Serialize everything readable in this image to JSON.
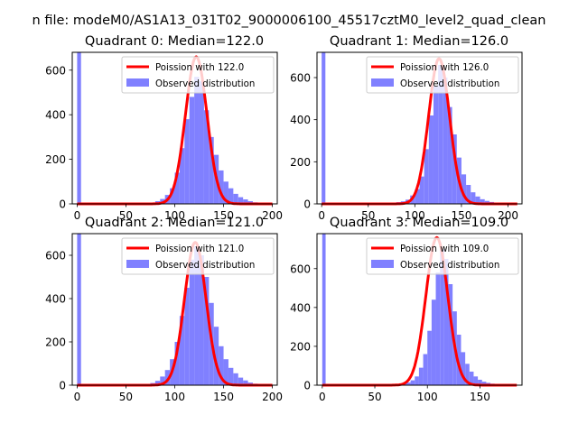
{
  "suptitle": "n file: modeM0/AS1A13_031T02_9000006100_45517cztM0_level2_quad_clean",
  "colors": {
    "hist": "#8080ff",
    "curve": "#ff0000"
  },
  "chart_data": [
    {
      "type": "bar",
      "title": "Quadrant 0: Median=122.0",
      "xlim": [
        -5,
        205
      ],
      "ylim": [
        0,
        680
      ],
      "xticks": [
        0,
        50,
        100,
        150,
        200
      ],
      "yticks": [
        0,
        200,
        400,
        600
      ],
      "legend": {
        "placement": "top-right",
        "entries": [
          "Poission with 122.0",
          "Observed distribution"
        ]
      },
      "spike": {
        "x": 0,
        "value": 680
      },
      "bin_width": 5,
      "bins": [
        [
          60,
          1
        ],
        [
          65,
          2
        ],
        [
          70,
          3
        ],
        [
          75,
          6
        ],
        [
          80,
          12
        ],
        [
          85,
          22
        ],
        [
          90,
          40
        ],
        [
          95,
          70
        ],
        [
          100,
          140
        ],
        [
          105,
          250
        ],
        [
          110,
          380
        ],
        [
          115,
          480
        ],
        [
          120,
          570
        ],
        [
          125,
          550
        ],
        [
          130,
          420
        ],
        [
          135,
          300
        ],
        [
          140,
          220
        ],
        [
          145,
          150
        ],
        [
          150,
          100
        ],
        [
          155,
          70
        ],
        [
          160,
          45
        ],
        [
          165,
          30
        ],
        [
          170,
          20
        ],
        [
          175,
          12
        ],
        [
          180,
          7
        ],
        [
          185,
          4
        ],
        [
          190,
          2
        ],
        [
          195,
          1
        ]
      ],
      "curve": {
        "mean": 122.0,
        "peak": 660,
        "sigma": 11.05
      }
    },
    {
      "type": "bar",
      "title": "Quadrant 1: Median=126.0",
      "xlim": [
        -5,
        215
      ],
      "ylim": [
        0,
        720
      ],
      "xticks": [
        0,
        50,
        100,
        150,
        200
      ],
      "yticks": [
        0,
        200,
        400,
        600
      ],
      "legend": {
        "placement": "top-right",
        "entries": [
          "Poission with 126.0",
          "Observed distribution"
        ]
      },
      "spike": {
        "x": 0,
        "value": 720
      },
      "bin_width": 5,
      "bins": [
        [
          60,
          1
        ],
        [
          65,
          2
        ],
        [
          70,
          3
        ],
        [
          75,
          5
        ],
        [
          80,
          8
        ],
        [
          85,
          12
        ],
        [
          90,
          20
        ],
        [
          95,
          40
        ],
        [
          100,
          70
        ],
        [
          105,
          130
        ],
        [
          110,
          260
        ],
        [
          115,
          420
        ],
        [
          120,
          560
        ],
        [
          125,
          660
        ],
        [
          130,
          600
        ],
        [
          135,
          460
        ],
        [
          140,
          330
        ],
        [
          145,
          220
        ],
        [
          150,
          140
        ],
        [
          155,
          90
        ],
        [
          160,
          55
        ],
        [
          165,
          35
        ],
        [
          170,
          22
        ],
        [
          175,
          14
        ],
        [
          180,
          9
        ],
        [
          185,
          5
        ],
        [
          190,
          3
        ],
        [
          195,
          2
        ],
        [
          200,
          1
        ]
      ],
      "curve": {
        "mean": 126.0,
        "peak": 690,
        "sigma": 11.22
      }
    },
    {
      "type": "bar",
      "title": "Quadrant 2: Median=121.0",
      "xlim": [
        -5,
        205
      ],
      "ylim": [
        0,
        700
      ],
      "xticks": [
        0,
        50,
        100,
        150,
        200
      ],
      "yticks": [
        0,
        200,
        400,
        600
      ],
      "legend": {
        "placement": "top-right",
        "entries": [
          "Poission with 121.0",
          "Observed distribution"
        ]
      },
      "spike": {
        "x": 0,
        "value": 700
      },
      "bin_width": 5,
      "bins": [
        [
          55,
          1
        ],
        [
          60,
          2
        ],
        [
          65,
          3
        ],
        [
          70,
          5
        ],
        [
          75,
          10
        ],
        [
          80,
          20
        ],
        [
          85,
          40
        ],
        [
          90,
          70
        ],
        [
          95,
          120
        ],
        [
          100,
          200
        ],
        [
          105,
          320
        ],
        [
          110,
          450
        ],
        [
          115,
          580
        ],
        [
          120,
          640
        ],
        [
          125,
          600
        ],
        [
          130,
          500
        ],
        [
          135,
          380
        ],
        [
          140,
          270
        ],
        [
          145,
          180
        ],
        [
          150,
          120
        ],
        [
          155,
          80
        ],
        [
          160,
          55
        ],
        [
          165,
          35
        ],
        [
          170,
          22
        ],
        [
          175,
          12
        ],
        [
          180,
          7
        ],
        [
          185,
          4
        ],
        [
          190,
          2
        ],
        [
          195,
          1
        ]
      ],
      "curve": {
        "mean": 121.0,
        "peak": 660,
        "sigma": 11.0
      }
    },
    {
      "type": "bar",
      "title": "Quadrant 3: Median=109.0",
      "xlim": [
        -5,
        190
      ],
      "ylim": [
        0,
        780
      ],
      "xticks": [
        0,
        50,
        100,
        150
      ],
      "yticks": [
        0,
        200,
        400,
        600
      ],
      "legend": {
        "placement": "top-right",
        "entries": [
          "Poission with 109.0",
          "Observed distribution"
        ]
      },
      "spike": {
        "x": 0,
        "value": 780
      },
      "bin_width": 4,
      "bins": [
        [
          60,
          1
        ],
        [
          64,
          2
        ],
        [
          68,
          3
        ],
        [
          72,
          5
        ],
        [
          76,
          8
        ],
        [
          80,
          14
        ],
        [
          84,
          25
        ],
        [
          88,
          45
        ],
        [
          92,
          90
        ],
        [
          96,
          160
        ],
        [
          100,
          280
        ],
        [
          104,
          440
        ],
        [
          108,
          580
        ],
        [
          112,
          700
        ],
        [
          116,
          650
        ],
        [
          120,
          520
        ],
        [
          124,
          380
        ],
        [
          128,
          260
        ],
        [
          132,
          170
        ],
        [
          136,
          110
        ],
        [
          140,
          70
        ],
        [
          144,
          45
        ],
        [
          148,
          28
        ],
        [
          152,
          18
        ],
        [
          156,
          12
        ],
        [
          160,
          8
        ],
        [
          164,
          5
        ],
        [
          168,
          3
        ],
        [
          172,
          2
        ],
        [
          176,
          1
        ],
        [
          180,
          1
        ]
      ],
      "curve": {
        "mean": 109.0,
        "peak": 760,
        "sigma": 10.44
      }
    }
  ]
}
